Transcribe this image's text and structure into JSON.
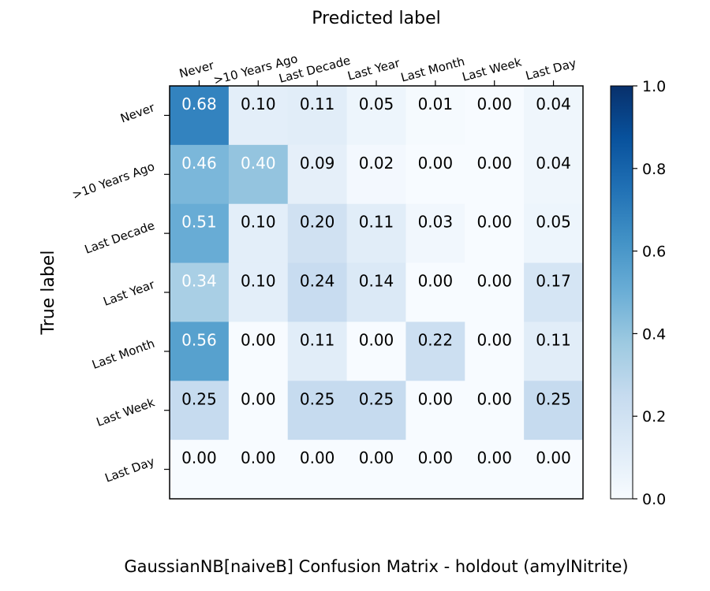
{
  "chart_data": {
    "type": "heatmap",
    "title": "GaussianNB[naiveB] Confusion Matrix - holdout (amylNitrite)",
    "xlabel": "Predicted label",
    "ylabel": "True label",
    "x_categories": [
      "Never",
      ">10 Years Ago",
      "Last Decade",
      "Last Year",
      "Last Month",
      "Last Week",
      "Last Day"
    ],
    "y_categories": [
      "Never",
      ">10 Years Ago",
      "Last Decade",
      "Last Year",
      "Last Month",
      "Last Week",
      "Last Day"
    ],
    "values": [
      [
        0.68,
        0.1,
        0.11,
        0.05,
        0.01,
        0.0,
        0.04
      ],
      [
        0.46,
        0.4,
        0.09,
        0.02,
        0.0,
        0.0,
        0.04
      ],
      [
        0.51,
        0.1,
        0.2,
        0.11,
        0.03,
        0.0,
        0.05
      ],
      [
        0.34,
        0.1,
        0.24,
        0.14,
        0.0,
        0.0,
        0.17
      ],
      [
        0.56,
        0.0,
        0.11,
        0.0,
        0.22,
        0.0,
        0.11
      ],
      [
        0.25,
        0.0,
        0.25,
        0.25,
        0.0,
        0.0,
        0.25
      ],
      [
        0.0,
        0.0,
        0.0,
        0.0,
        0.0,
        0.0,
        0.0
      ]
    ],
    "colorbar": {
      "range": [
        0.0,
        1.0
      ],
      "ticks": [
        "0.0",
        "0.2",
        "0.4",
        "0.6",
        "0.8",
        "1.0"
      ],
      "colormap": "Blues"
    }
  }
}
